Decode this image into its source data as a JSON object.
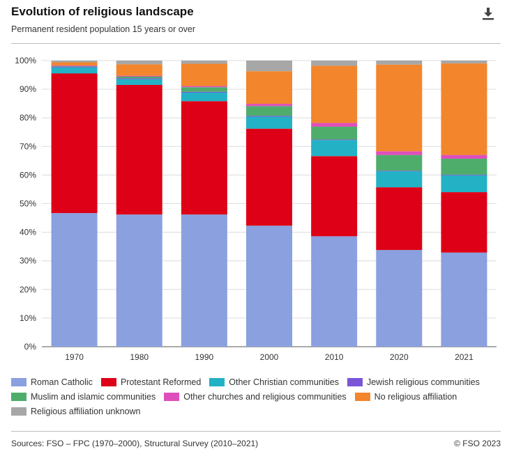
{
  "header": {
    "title": "Evolution of religious landscape",
    "subtitle": "Permanent resident population 15 years or over",
    "download_icon": "download-icon"
  },
  "footer": {
    "sources": "Sources: FSO – FPC (1970–2000), Structural Survey (2010–2021)",
    "copyright": "© FSO 2023"
  },
  "chart_data": {
    "type": "bar",
    "stacked": true,
    "title": "Evolution of religious landscape",
    "subtitle": "Permanent resident population 15 years or over",
    "xlabel": "",
    "ylabel": "",
    "ylim": [
      0,
      100
    ],
    "y_ticks": [
      "0%",
      "10%",
      "20%",
      "30%",
      "40%",
      "50%",
      "60%",
      "70%",
      "80%",
      "90%",
      "100%"
    ],
    "grid": true,
    "legend_position": "bottom",
    "categories": [
      "1970",
      "1980",
      "1990",
      "2000",
      "2010",
      "2020",
      "2021"
    ],
    "series": [
      {
        "name": "Roman Catholic",
        "color": "#8aa0df",
        "values": [
          46.7,
          46.2,
          46.2,
          42.3,
          38.6,
          33.8,
          32.9
        ]
      },
      {
        "name": "Protestant Reformed",
        "color": "#de0016",
        "values": [
          48.8,
          45.3,
          39.6,
          33.9,
          28.0,
          21.9,
          21.1
        ]
      },
      {
        "name": "Other Christian communities",
        "color": "#23b1c5",
        "values": [
          2.1,
          2.0,
          3.0,
          4.2,
          5.6,
          5.6,
          5.9
        ]
      },
      {
        "name": "Jewish religious communities",
        "color": "#7a55d8",
        "values": [
          0.3,
          0.3,
          0.3,
          0.3,
          0.2,
          0.2,
          0.2
        ]
      },
      {
        "name": "Muslim and islamic communities",
        "color": "#4fad6c",
        "values": [
          0.2,
          0.6,
          1.6,
          3.4,
          4.5,
          5.5,
          5.6
        ]
      },
      {
        "name": "Other churches and religious communities",
        "color": "#de4fbc",
        "values": [
          0.2,
          0.3,
          0.4,
          0.8,
          1.3,
          1.3,
          1.3
        ]
      },
      {
        "name": "No religious affiliation",
        "color": "#f3852c",
        "values": [
          1.1,
          4.0,
          7.8,
          11.4,
          20.0,
          30.3,
          32.0
        ]
      },
      {
        "name": "Religious affiliation unknown",
        "color": "#a7a7a7",
        "values": [
          0.6,
          1.3,
          1.1,
          3.7,
          1.8,
          1.4,
          1.0
        ]
      }
    ]
  }
}
